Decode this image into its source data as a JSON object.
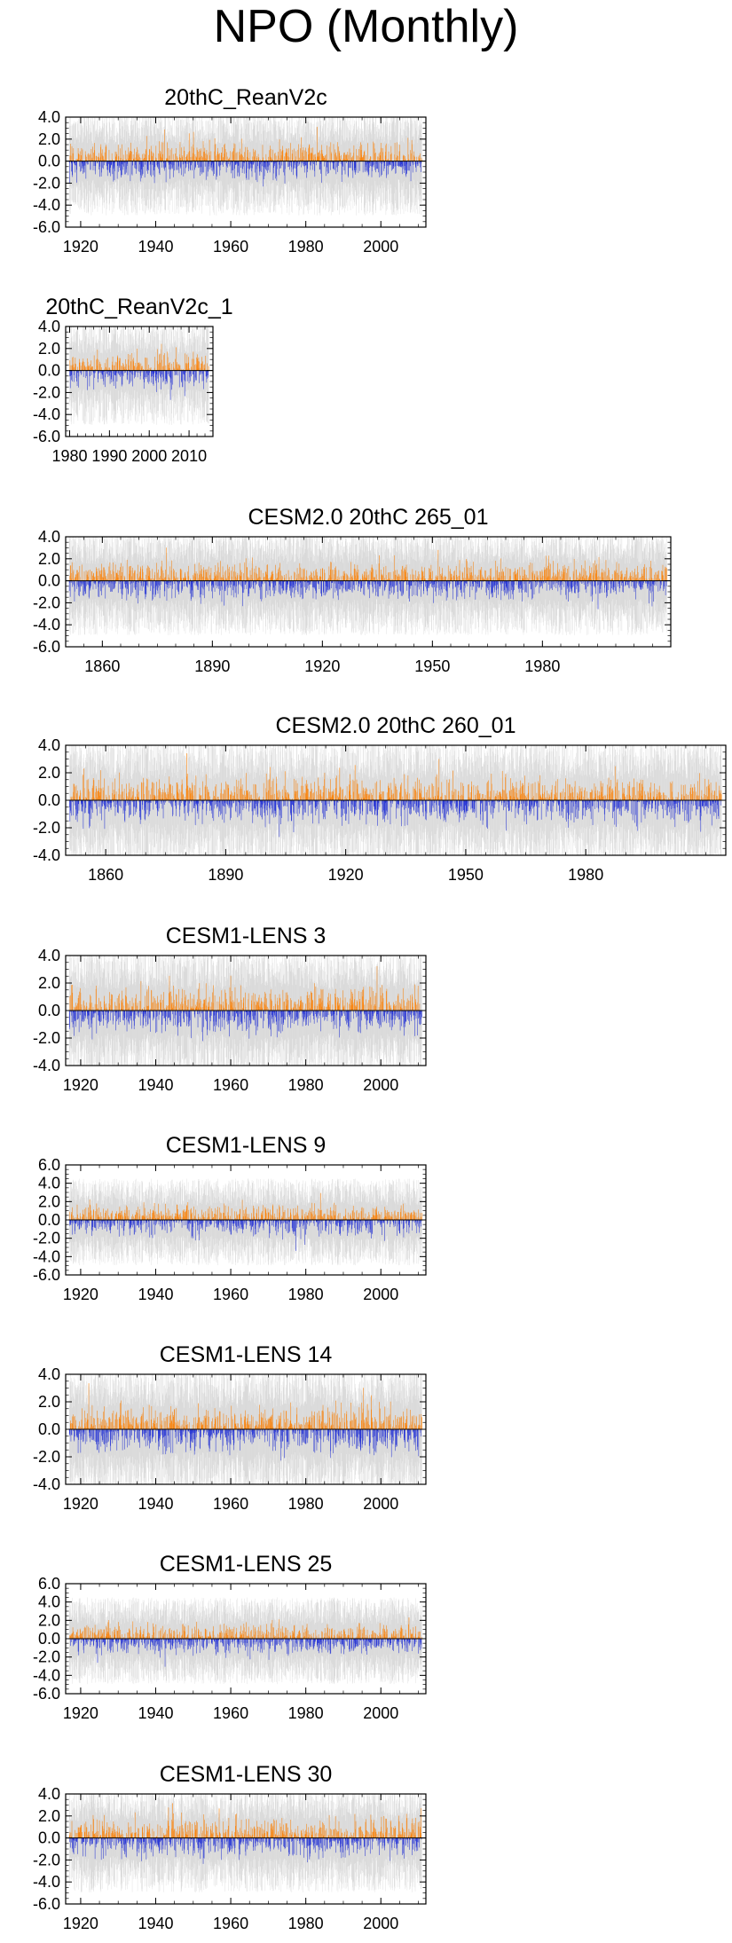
{
  "title": "NPO (Monthly)",
  "colors": {
    "positive": "#ff8000",
    "negative": "#1f2ed8",
    "spread": "#bdbdbd",
    "axis": "#000000"
  },
  "chart_data": [
    {
      "type": "bar",
      "title": "20thC_ReanV2c",
      "x_range": [
        1916,
        2012
      ],
      "xticks": [
        1920,
        1940,
        1960,
        1980,
        2000
      ],
      "minor_x": 5,
      "yticks": [
        "4.0",
        "2.0",
        "0.0",
        "-2.0",
        "-4.0",
        "-6.0"
      ],
      "ylim": [
        -6,
        4
      ],
      "grid": false,
      "seed": 11
    },
    {
      "type": "bar",
      "title": "20thC_ReanV2c_1",
      "x_range": [
        1979,
        2016
      ],
      "xticks": [
        1980,
        1990,
        2000,
        2010
      ],
      "minor_x": 2,
      "yticks": [
        "4.0",
        "2.0",
        "0.0",
        "-2.0",
        "-4.0",
        "-6.0"
      ],
      "ylim": [
        -6,
        4
      ],
      "grid": false,
      "seed": 23
    },
    {
      "type": "bar",
      "title": "CESM2.0 20thC 265_01",
      "x_range": [
        1850,
        2015
      ],
      "xticks": [
        1860,
        1890,
        1920,
        1950,
        1980
      ],
      "minor_x": 5,
      "yticks": [
        "4.0",
        "2.0",
        "0.0",
        "-2.0",
        "-4.0",
        "-6.0"
      ],
      "ylim": [
        -6,
        4
      ],
      "grid": false,
      "seed": 37
    },
    {
      "type": "bar",
      "title": "CESM2.0 20thC 260_01",
      "x_range": [
        1850,
        2015
      ],
      "xticks": [
        1860,
        1890,
        1920,
        1950,
        1980
      ],
      "minor_x": 5,
      "yticks": [
        "4.0",
        "2.0",
        "0.0",
        "-2.0",
        "-4.0"
      ],
      "ylim": [
        -4,
        4
      ],
      "grid": false,
      "seed": 41
    },
    {
      "type": "bar",
      "title": "CESM1-LENS 3",
      "x_range": [
        1916,
        2012
      ],
      "xticks": [
        1920,
        1940,
        1960,
        1980,
        2000
      ],
      "minor_x": 5,
      "yticks": [
        "4.0",
        "2.0",
        "0.0",
        "-2.0",
        "-4.0"
      ],
      "ylim": [
        -4,
        4
      ],
      "grid": false,
      "seed": 53
    },
    {
      "type": "bar",
      "title": "CESM1-LENS 9",
      "x_range": [
        1916,
        2012
      ],
      "xticks": [
        1920,
        1940,
        1960,
        1980,
        2000
      ],
      "minor_x": 5,
      "yticks": [
        "6.0",
        "4.0",
        "2.0",
        "0.0",
        "-2.0",
        "-4.0",
        "-6.0"
      ],
      "ylim": [
        -6,
        6
      ],
      "grid": false,
      "seed": 67
    },
    {
      "type": "bar",
      "title": "CESM1-LENS 14",
      "x_range": [
        1916,
        2012
      ],
      "xticks": [
        1920,
        1940,
        1960,
        1980,
        2000
      ],
      "minor_x": 5,
      "yticks": [
        "4.0",
        "2.0",
        "0.0",
        "-2.0",
        "-4.0"
      ],
      "ylim": [
        -4,
        4
      ],
      "grid": false,
      "seed": 71
    },
    {
      "type": "bar",
      "title": "CESM1-LENS 25",
      "x_range": [
        1916,
        2012
      ],
      "xticks": [
        1920,
        1940,
        1960,
        1980,
        2000
      ],
      "minor_x": 5,
      "yticks": [
        "6.0",
        "4.0",
        "2.0",
        "0.0",
        "-2.0",
        "-4.0",
        "-6.0"
      ],
      "ylim": [
        -6,
        6
      ],
      "grid": false,
      "seed": 83
    },
    {
      "type": "bar",
      "title": "CESM1-LENS 30",
      "x_range": [
        1916,
        2012
      ],
      "xticks": [
        1920,
        1940,
        1960,
        1980,
        2000
      ],
      "minor_x": 5,
      "yticks": [
        "4.0",
        "2.0",
        "0.0",
        "-2.0",
        "-4.0",
        "-6.0"
      ],
      "ylim": [
        -6,
        4
      ],
      "grid": false,
      "seed": 97
    }
  ]
}
